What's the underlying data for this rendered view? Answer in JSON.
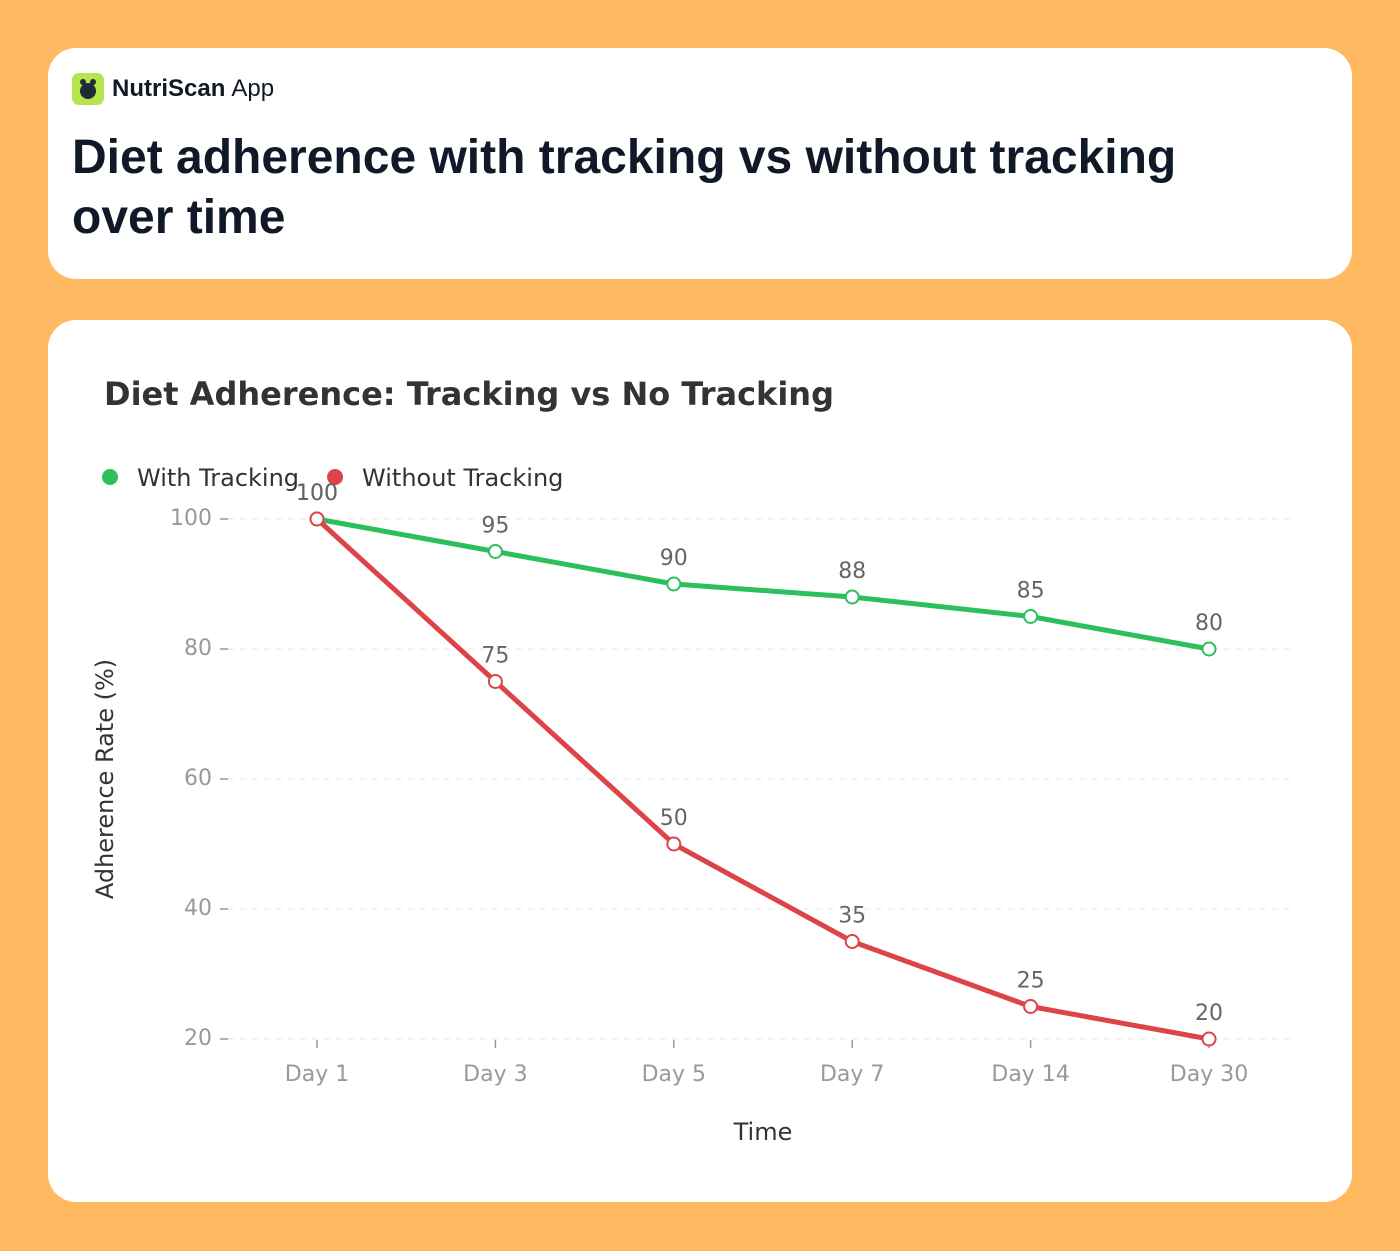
{
  "header": {
    "brand": "NutriScan",
    "brand_suffix": "App",
    "title": "Diet adherence with tracking vs without tracking over time"
  },
  "chart_data": {
    "type": "line",
    "title": "Diet Adherence: Tracking vs No Tracking",
    "x_label": "Time",
    "y_label": "Adherence Rate (%)",
    "categories": [
      "Day 1",
      "Day 3",
      "Day 5",
      "Day 7",
      "Day 14",
      "Day 30"
    ],
    "series": [
      {
        "name": "With Tracking",
        "color": "#2cbf5b",
        "values": [
          100,
          95,
          90,
          88,
          85,
          80
        ]
      },
      {
        "name": "Without Tracking",
        "color": "#dc4447",
        "values": [
          100,
          75,
          50,
          35,
          25,
          20
        ]
      }
    ],
    "ylim": [
      20,
      100
    ],
    "yticks": [
      20,
      40,
      60,
      80,
      100
    ],
    "grid": true,
    "legend": "top-left"
  }
}
